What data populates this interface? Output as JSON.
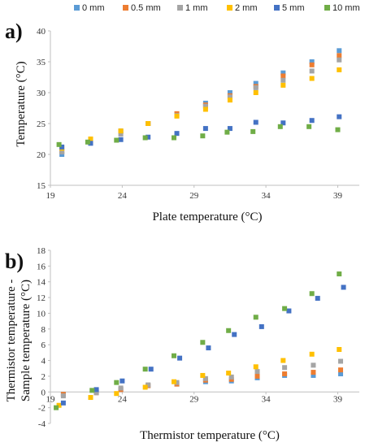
{
  "legend": [
    {
      "label": "0 mm",
      "color": "#5b9bd5"
    },
    {
      "label": "0.5 mm",
      "color": "#ed7d31"
    },
    {
      "label": "1 mm",
      "color": "#a5a5a5"
    },
    {
      "label": "2 mm",
      "color": "#ffc000"
    },
    {
      "label": "5 mm",
      "color": "#4472c4"
    },
    {
      "label": "10 mm",
      "color": "#70ad47"
    }
  ],
  "chart_data": [
    {
      "type": "scatter",
      "panel_label": "a)",
      "xlabel": "Plate temperature (°C)",
      "ylabel": "Temperature (°C)",
      "xlim": [
        19,
        40.5
      ],
      "ylim": [
        15,
        40
      ],
      "xticks": [
        19,
        24,
        29,
        34,
        39
      ],
      "yticks": [
        15,
        20,
        25,
        30,
        35,
        40
      ],
      "grid": false,
      "legend_position": "top",
      "series": [
        {
          "name": "0 mm",
          "color": "#5b9bd5",
          "x": [
            19.8,
            21.8,
            23.9,
            25.8,
            27.8,
            29.8,
            31.5,
            33.3,
            35.2,
            37.2,
            39.1
          ],
          "y": [
            20.0,
            22.0,
            23.8,
            25.0,
            26.5,
            28.3,
            30.0,
            31.5,
            33.2,
            35.0,
            36.8
          ]
        },
        {
          "name": "0.5 mm",
          "color": "#ed7d31",
          "x": [
            19.8,
            21.8,
            23.9,
            25.8,
            27.8,
            29.8,
            31.5,
            33.3,
            35.2,
            37.2,
            39.1
          ],
          "y": [
            20.5,
            22.2,
            23.7,
            25.0,
            26.6,
            28.0,
            29.5,
            31.0,
            32.7,
            34.5,
            36.0
          ]
        },
        {
          "name": "1 mm",
          "color": "#a5a5a5",
          "x": [
            19.8,
            21.8,
            23.9,
            25.8,
            27.8,
            29.8,
            31.5,
            33.3,
            35.2,
            37.2,
            39.1
          ],
          "y": [
            20.4,
            22.0,
            23.3,
            25.0,
            26.3,
            27.8,
            29.3,
            30.8,
            32.0,
            33.5,
            35.3
          ]
        },
        {
          "name": "2 mm",
          "color": "#ffc000",
          "x": [
            19.8,
            21.8,
            23.9,
            25.8,
            27.8,
            29.8,
            31.5,
            33.3,
            35.2,
            37.2,
            39.1
          ],
          "y": [
            21.0,
            22.5,
            23.8,
            25.0,
            26.2,
            27.3,
            28.8,
            30.0,
            31.2,
            32.3,
            33.7
          ]
        },
        {
          "name": "5 mm",
          "color": "#4472c4",
          "x": [
            19.8,
            21.8,
            23.9,
            25.8,
            27.8,
            29.8,
            31.5,
            33.3,
            35.2,
            37.2,
            39.1
          ],
          "y": [
            21.2,
            21.8,
            22.4,
            22.8,
            23.4,
            24.2,
            24.2,
            25.2,
            25.1,
            25.5,
            26.1
          ]
        },
        {
          "name": "10 mm",
          "color": "#70ad47",
          "x": [
            19.6,
            21.6,
            23.6,
            25.6,
            27.6,
            29.6,
            31.3,
            33.1,
            35.0,
            37.0,
            39.0
          ],
          "y": [
            21.6,
            22.0,
            22.3,
            22.7,
            22.7,
            23.0,
            23.6,
            23.7,
            24.5,
            24.5,
            24.0
          ]
        }
      ]
    },
    {
      "type": "scatter",
      "panel_label": "b)",
      "xlabel": "Thermistor temperature (°C)",
      "ylabel": "Thermistor temperature - Sample temperature (°C)",
      "ylabel_lines": [
        "Thermistor temperature -",
        "Sample temperature (°C)"
      ],
      "xlim": [
        19,
        40.5
      ],
      "ylim": [
        -4,
        18
      ],
      "xticks": [
        19,
        24,
        29,
        34,
        39
      ],
      "yticks": [
        -4,
        -2,
        0,
        2,
        4,
        6,
        8,
        10,
        12,
        14,
        16,
        18
      ],
      "grid": false,
      "series": [
        {
          "name": "0 mm",
          "color": "#5b9bd5",
          "x": [
            19.9,
            22.2,
            23.9,
            25.8,
            27.8,
            29.8,
            31.6,
            33.4,
            35.3,
            37.3,
            39.2
          ],
          "y": [
            -0.3,
            0.1,
            0.3,
            0.8,
            1.0,
            1.3,
            1.4,
            1.8,
            2.1,
            2.1,
            2.3
          ]
        },
        {
          "name": "0.5 mm",
          "color": "#ed7d31",
          "x": [
            19.9,
            22.2,
            23.9,
            25.8,
            27.8,
            29.8,
            31.6,
            33.4,
            35.3,
            37.3,
            39.2
          ],
          "y": [
            -0.3,
            -0.1,
            0.3,
            0.8,
            1.0,
            1.5,
            1.6,
            2.0,
            2.3,
            2.5,
            2.8
          ]
        },
        {
          "name": "1 mm",
          "color": "#a5a5a5",
          "x": [
            19.9,
            22.2,
            23.9,
            25.8,
            27.8,
            29.8,
            31.6,
            33.4,
            35.3,
            37.3,
            39.2
          ],
          "y": [
            -0.5,
            -0.1,
            0.5,
            0.9,
            1.2,
            1.7,
            1.9,
            2.6,
            3.1,
            3.4,
            3.9
          ]
        },
        {
          "name": "2 mm",
          "color": "#ffc000",
          "x": [
            19.6,
            21.8,
            23.6,
            25.6,
            27.6,
            29.6,
            31.4,
            33.3,
            35.2,
            37.2,
            39.1
          ],
          "y": [
            -1.7,
            -0.7,
            -0.2,
            0.6,
            1.3,
            2.1,
            2.4,
            3.2,
            4.0,
            4.8,
            5.4
          ]
        },
        {
          "name": "5 mm",
          "color": "#4472c4",
          "x": [
            19.9,
            22.2,
            24.0,
            26.0,
            28.0,
            30.0,
            31.8,
            33.7,
            35.6,
            37.6,
            39.4
          ],
          "y": [
            -1.4,
            0.3,
            1.4,
            2.9,
            4.3,
            5.6,
            7.3,
            8.3,
            10.3,
            11.9,
            13.3
          ]
        },
        {
          "name": "10 mm",
          "color": "#70ad47",
          "x": [
            19.4,
            21.9,
            23.6,
            25.6,
            27.6,
            29.6,
            31.4,
            33.3,
            35.3,
            37.2,
            39.1
          ],
          "y": [
            -2.0,
            0.2,
            1.2,
            2.9,
            4.6,
            6.3,
            7.8,
            9.5,
            10.6,
            12.5,
            15.0
          ]
        }
      ]
    }
  ]
}
